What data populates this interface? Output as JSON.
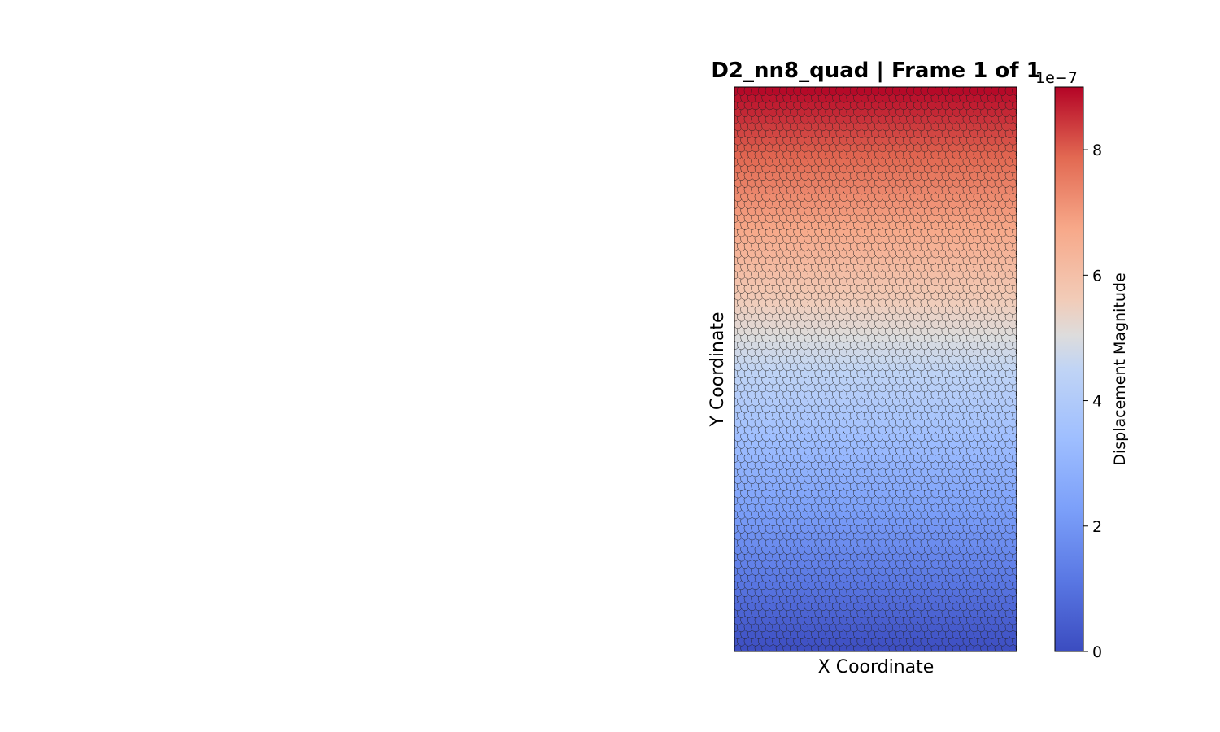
{
  "chart_data": {
    "type": "heatmap",
    "title": "D2_nn8_quad  |  Frame 1 of 1",
    "xlabel": "X Coordinate",
    "ylabel": "Y Coordinate",
    "xticks": [],
    "yticks": [],
    "grid": {
      "columns": 40,
      "rows": 80
    },
    "value_gradient": {
      "axis": "y",
      "bottom_value": 0,
      "top_value": 9e-07,
      "note_shape": "particles"
    },
    "colormap": "coolwarm",
    "colorbar": {
      "label": "Displacement Magnitude",
      "offset_text": "1e−7",
      "min": 0,
      "max": 9,
      "ticks": [
        0,
        2,
        4,
        6,
        8
      ],
      "tick_labels": [
        "0",
        "2",
        "4",
        "6",
        "8"
      ]
    },
    "colors": {
      "low": "#3b4cc0",
      "mid": "#dddddd",
      "high": "#b40426",
      "edge": "#222222"
    }
  }
}
